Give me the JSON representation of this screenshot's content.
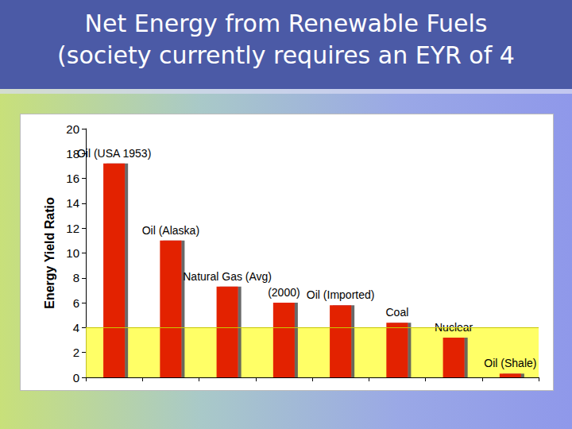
{
  "chart_data": {
    "type": "bar",
    "title": [
      "Net Energy from Renewable Fuels",
      "(society currently requires an EYR of 4"
    ],
    "y_label": "Energy Yield Ratio",
    "categories": [
      "Oil (USA 1953)",
      "Oil (Alaska)",
      "Natural Gas (Avg)",
      "(2000)",
      "Oil (Imported)",
      "Coal",
      "Nuclear",
      "Oil (Shale)"
    ],
    "values": [
      17.2,
      11,
      7.3,
      6,
      5.8,
      4.4,
      3.2,
      0.3
    ],
    "color": "#e32400",
    "threshold": 4,
    "ylim": [
      0,
      20
    ],
    "yticks": [
      0,
      2,
      4,
      6,
      8,
      10,
      12,
      14,
      16,
      18,
      20
    ],
    "grid": false,
    "tick_labels": "y"
  }
}
